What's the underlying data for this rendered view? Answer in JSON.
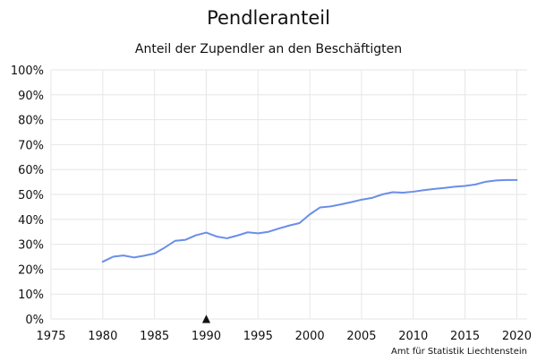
{
  "chart_data": {
    "type": "line",
    "title": "Pendleranteil",
    "subtitle": "Anteil der Zupendler an den Beschäftigten",
    "source": "Amt für Statistik Liechtenstein",
    "xlim": [
      1975,
      2021
    ],
    "ylim": [
      0,
      100
    ],
    "xticks": [
      1975,
      1980,
      1985,
      1990,
      1995,
      2000,
      2005,
      2010,
      2015,
      2020
    ],
    "yticks": [
      0,
      10,
      20,
      30,
      40,
      50,
      60,
      70,
      80,
      90,
      100
    ],
    "ytick_labels": [
      "0%",
      "10%",
      "20%",
      "30%",
      "40%",
      "50%",
      "60%",
      "70%",
      "80%",
      "90%",
      "100%"
    ],
    "grid": true,
    "line_color": "#6a8ee8",
    "marker": {
      "x": 1990,
      "symbol": "▲"
    },
    "series": [
      {
        "x": [
          1980,
          1981,
          1982,
          1983,
          1984,
          1985,
          1986,
          1987,
          1988,
          1989,
          1990,
          1991,
          1992,
          1993,
          1994,
          1995,
          1996,
          1997,
          1998,
          1999,
          2000,
          2001,
          2002,
          2003,
          2004,
          2005,
          2006,
          2007,
          2008,
          2009,
          2010,
          2011,
          2012,
          2013,
          2014,
          2015,
          2016,
          2017,
          2018,
          2019,
          2020
        ],
        "values": [
          23.0,
          25.0,
          25.5,
          24.7,
          25.4,
          26.3,
          28.7,
          31.4,
          31.8,
          33.6,
          34.7,
          33.1,
          32.4,
          33.5,
          34.8,
          34.4,
          35.0,
          36.3,
          37.5,
          38.5,
          42.0,
          44.8,
          45.2,
          46.0,
          46.9,
          47.9,
          48.6,
          50.0,
          50.9,
          50.7,
          51.1,
          51.7,
          52.2,
          52.6,
          53.1,
          53.4,
          54.0,
          55.1,
          55.6,
          55.8,
          55.8
        ]
      }
    ]
  }
}
